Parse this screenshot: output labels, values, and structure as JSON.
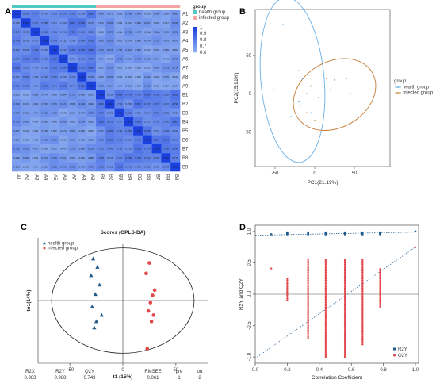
{
  "chart_data": [
    {
      "panel": "A",
      "type": "heatmap",
      "row_labels": [
        "A1",
        "A2",
        "A3",
        "A4",
        "A5",
        "A6",
        "A7",
        "A8",
        "A9",
        "B1",
        "B2",
        "B3",
        "B4",
        "B5",
        "B6",
        "B7",
        "B8",
        "B9"
      ],
      "col_labels": [
        "A1",
        "A2",
        "A3",
        "A4",
        "A5",
        "A6",
        "A7",
        "A8",
        "A9",
        "B1",
        "B2",
        "B3",
        "B4",
        "B5",
        "B6",
        "B7",
        "B8",
        "B9"
      ],
      "group_title": "group",
      "group_legend": [
        {
          "name": "health group",
          "color": "#4ec9c5"
        },
        {
          "name": "infected group",
          "color": "#f2a6a6"
        }
      ],
      "scale_ticks": [
        "1",
        "0.9",
        "0.8",
        "0.7",
        "0.6"
      ],
      "scale_range": [
        0.6,
        1
      ],
      "colors": {
        "low": "#8fb0f0",
        "high": "#1a40e0"
      }
    },
    {
      "panel": "B",
      "type": "scatter",
      "xlabel": "PC1(21.19%)",
      "ylabel": "PC2(15.91%)",
      "xticks": [
        -50,
        0,
        50
      ],
      "yticks": [
        -50,
        0,
        50
      ],
      "xlim": [
        -75,
        95
      ],
      "ylim": [
        -95,
        110
      ],
      "legend_title": "group",
      "legend_position": "right",
      "series": [
        {
          "name": "health group",
          "color": "#4aa6e0",
          "x": [
            -40,
            -20,
            -52,
            -10,
            -18,
            -5,
            -30,
            -20,
            -15
          ],
          "y": [
            90,
            30,
            5,
            0,
            -15,
            -25,
            -30,
            -10,
            20
          ]
        },
        {
          "name": "infected group",
          "color": "#c07628",
          "x": [
            15,
            25,
            45,
            -5,
            5,
            40,
            0,
            20,
            -10
          ],
          "y": [
            20,
            18,
            0,
            10,
            -5,
            20,
            -35,
            5,
            -25
          ]
        }
      ],
      "ellipses": [
        {
          "series": "health group",
          "color": "#6ab0e8",
          "cx": -28,
          "cy": 18,
          "rx": 40,
          "ry": 108,
          "rotate": -5
        },
        {
          "series": "infected group",
          "color": "#c57a34",
          "cx": 25,
          "cy": -1,
          "rx": 55,
          "ry": 43,
          "rotate": -30
        }
      ]
    },
    {
      "panel": "C",
      "type": "scatter",
      "title": "Scores (OPLS-DA)",
      "xlabel": "t1 (15%)",
      "ylabel": "to1(14%)",
      "xticks": [
        -50,
        0,
        50
      ],
      "xlim": [
        -80,
        80
      ],
      "ylim": [
        -60,
        60
      ],
      "legend": [
        {
          "name": "health group",
          "color": "#1f5a8c"
        },
        {
          "name": "infected group",
          "color": "#e0484c"
        }
      ],
      "series": [
        {
          "name": "health group",
          "color": "#1f5a8c",
          "marker": "triangle",
          "x": [
            -28,
            -24,
            -30,
            -22,
            -26,
            -29,
            -20,
            -25,
            -27
          ],
          "y": [
            40,
            32,
            24,
            15,
            6,
            -6,
            -14,
            -20,
            -26
          ]
        },
        {
          "name": "infected group",
          "color": "#e0484c",
          "marker": "circle",
          "x": [
            25,
            22,
            30,
            28,
            26,
            24,
            29,
            27,
            23
          ],
          "y": [
            36,
            26,
            10,
            5,
            -2,
            -10,
            -14,
            -20,
            -46
          ]
        }
      ],
      "ellipse": true,
      "stats": {
        "headers": [
          "R2X",
          "R2Y",
          "Q2Y",
          "RMSEE",
          "pre",
          "ort"
        ],
        "values": [
          "0.383",
          "0.988",
          "0.743",
          "0.061",
          "1",
          "2"
        ]
      }
    },
    {
      "panel": "D",
      "type": "scatter",
      "xlabel": "Correlation Coefficient",
      "ylabel": "R2Y and Q2Y",
      "xticks": [
        "0.0",
        "0.2",
        "0.4",
        "0.6",
        "0.8",
        "1.0"
      ],
      "yticks": [
        "-1.0",
        "-0.5",
        "0.0",
        "0.5",
        "1.0"
      ],
      "xlim": [
        0,
        1.02
      ],
      "ylim": [
        -1.1,
        1.1
      ],
      "legend_position": "bottom-right",
      "series": [
        {
          "name": "R2Y",
          "color": "#1f5a8c",
          "y_base": 0.97
        },
        {
          "name": "Q2Y",
          "color": "#e0484c"
        }
      ],
      "x_levels": [
        0.1,
        0.2,
        0.33,
        0.44,
        0.56,
        0.67,
        0.78,
        1.0
      ],
      "q2y_ranges": [
        [
          0.41,
          0.41
        ],
        [
          -0.1,
          0.25
        ],
        [
          -0.7,
          0.55
        ],
        [
          -1.0,
          0.55
        ],
        [
          -1.0,
          0.55
        ],
        [
          -0.8,
          0.55
        ],
        [
          -0.2,
          0.4
        ],
        [
          0.75,
          0.75
        ]
      ],
      "r2y_trend": {
        "intercept": 0.94,
        "slope": 0.05
      },
      "q2y_trend": {
        "intercept": -1.02,
        "slope": 1.77
      }
    }
  ]
}
